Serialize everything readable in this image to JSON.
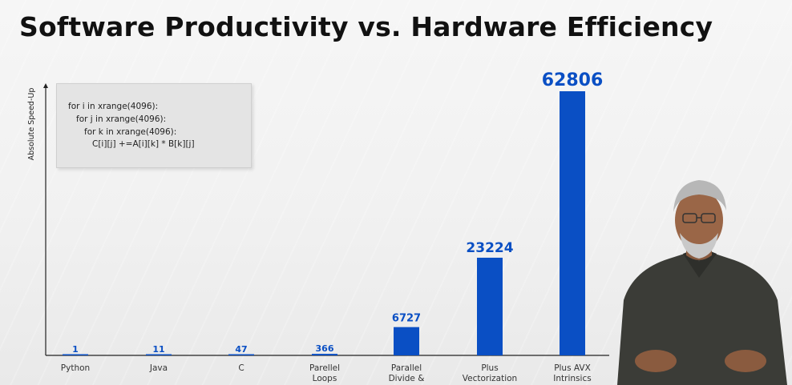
{
  "title": "Software Productivity vs. Hardware Efficiency",
  "code_snippet": {
    "lines": [
      "for i in xrange(4096):",
      "for j in xrange(4096):",
      "for k in xrange(4096):",
      "C[i][j] +=A[i][k] * B[k][j]"
    ]
  },
  "colors": {
    "bar": "#0a4fc4",
    "label": "#0a4fc4",
    "axis": "#222222",
    "category_text": "#333333"
  },
  "chart_data": {
    "type": "bar",
    "title": "Software Productivity vs. Hardware Efficiency",
    "ylabel": "Absolute Speed-Up",
    "xlabel": "",
    "ylim": [
      0,
      70000
    ],
    "grid": false,
    "legend": "none",
    "categories": [
      [
        "Python"
      ],
      [
        "Java"
      ],
      [
        "C"
      ],
      [
        "Parellel",
        "Loops"
      ],
      [
        "Parallel",
        "Divide &"
      ],
      [
        "Plus",
        "Vectorization"
      ],
      [
        "Plus AVX",
        "Intrinsics"
      ]
    ],
    "values": [
      1,
      11,
      47,
      366,
      6727,
      23224,
      62806
    ],
    "data_labels": [
      "1",
      "11",
      "47",
      "366",
      "6727",
      "23224",
      "62806"
    ]
  }
}
